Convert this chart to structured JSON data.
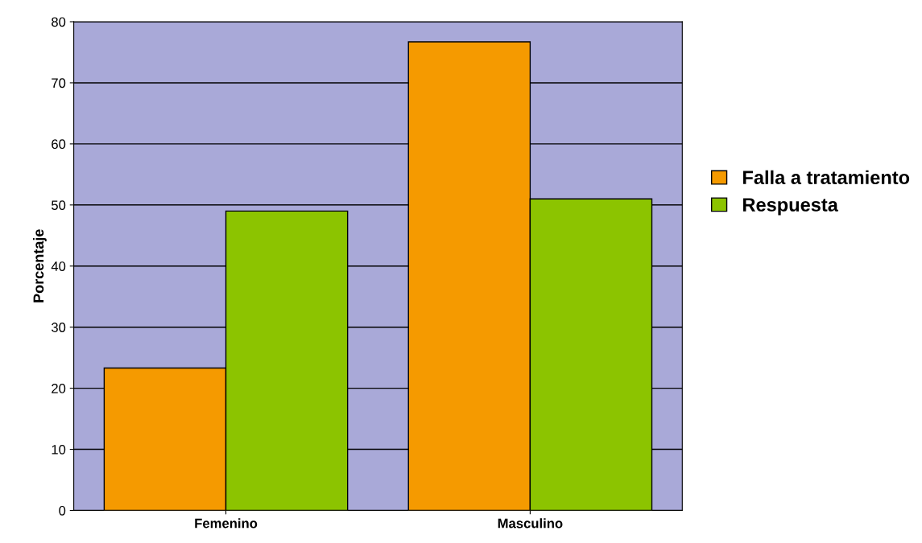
{
  "chart_data": {
    "type": "bar",
    "ylabel": "Porcentaje",
    "categories": [
      "Femenino",
      "Masculino"
    ],
    "series": [
      {
        "name": "Falla a tratamiento",
        "color": "#f59a00",
        "values": [
          23.3,
          76.7
        ]
      },
      {
        "name": "Respuesta",
        "color": "#8cc400",
        "values": [
          49,
          51
        ]
      }
    ],
    "ylim": [
      0,
      80
    ],
    "yticks": [
      0,
      10,
      20,
      30,
      40,
      50,
      60,
      70,
      80
    ],
    "grid": "y",
    "legend": "right"
  }
}
